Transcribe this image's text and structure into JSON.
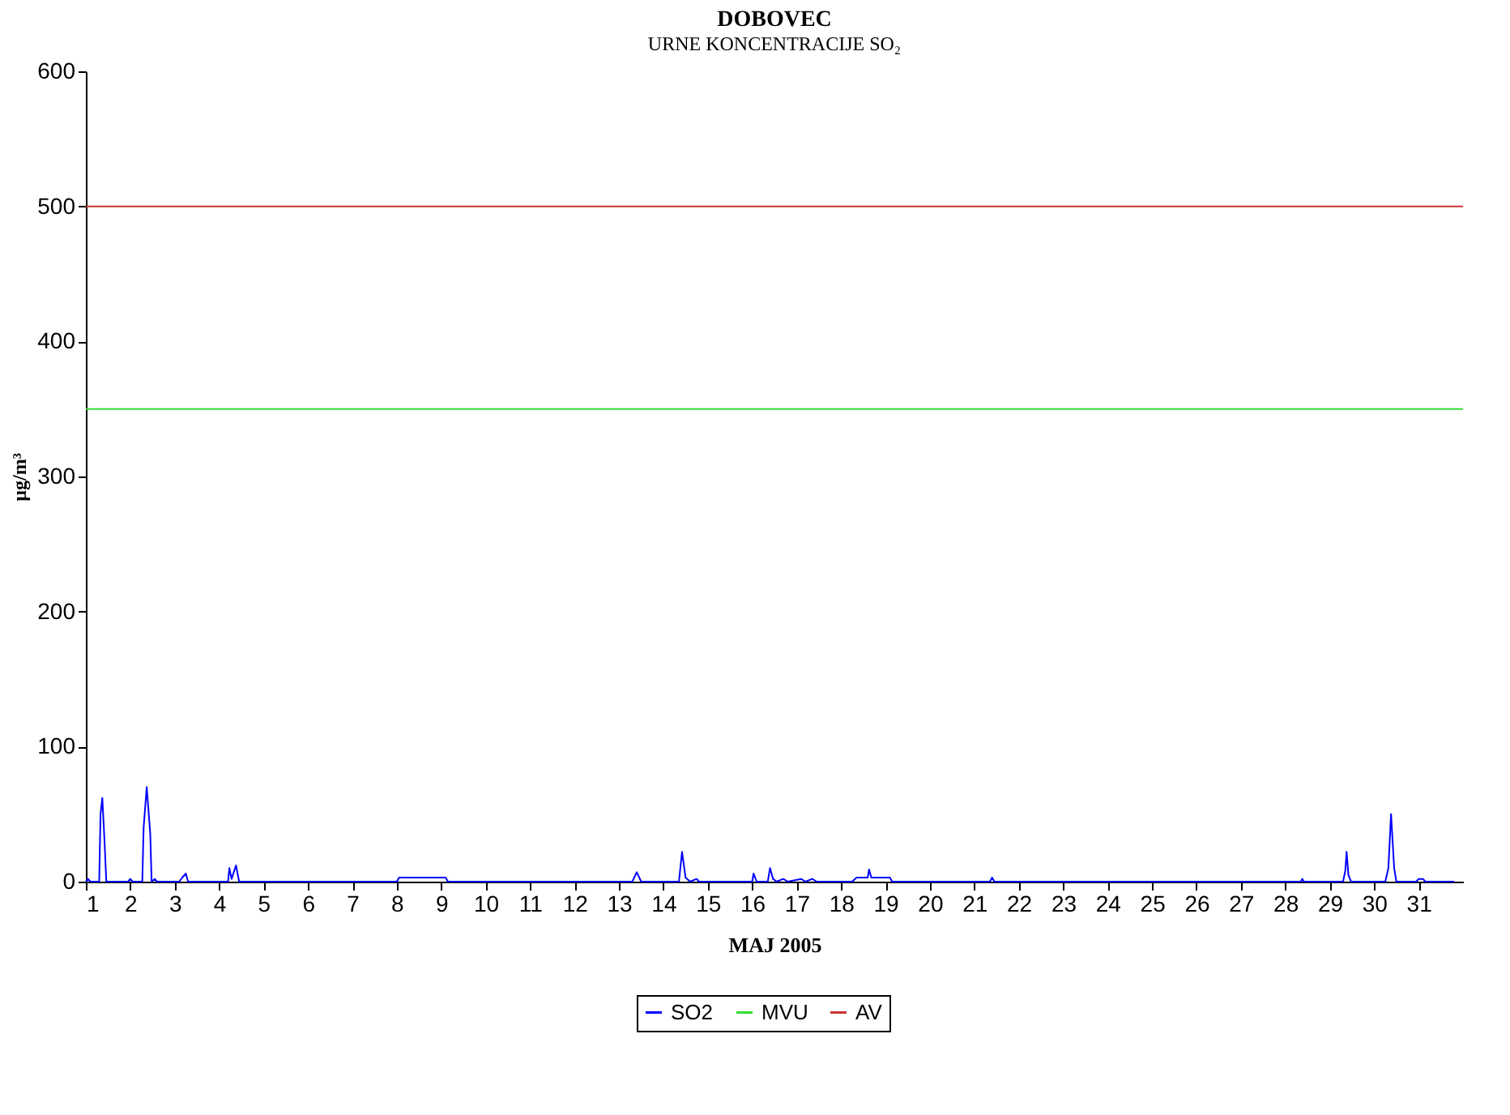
{
  "chart_data": {
    "type": "line",
    "title": "DOBOVEC",
    "subtitle": "URNE KONCENTRACIJE SO₂",
    "xlabel": "MAJ 2005",
    "ylabel": "µg/m³",
    "xlim": [
      1,
      32
    ],
    "xticks": [
      1,
      2,
      3,
      4,
      5,
      6,
      7,
      8,
      9,
      10,
      11,
      12,
      13,
      14,
      15,
      16,
      17,
      18,
      19,
      20,
      21,
      22,
      23,
      24,
      25,
      26,
      27,
      28,
      29,
      30,
      31
    ],
    "ylim": [
      0,
      600
    ],
    "yticks": [
      0,
      100,
      200,
      300,
      400,
      500,
      600
    ],
    "grid": false,
    "legend": "bottom",
    "line_style": "solid",
    "marker": "none",
    "series": [
      {
        "name": "SO2",
        "color": "#0000ff",
        "x": [
          1.0,
          1.05,
          1.1,
          1.3,
          1.33,
          1.37,
          1.42,
          1.46,
          1.95,
          2.0,
          2.05,
          2.27,
          2.3,
          2.37,
          2.45,
          2.48,
          2.55,
          2.6,
          3.1,
          3.17,
          3.25,
          3.3,
          4.2,
          4.23,
          4.28,
          4.38,
          4.45,
          8.0,
          8.05,
          9.1,
          9.15,
          13.3,
          13.4,
          13.5,
          14.35,
          14.42,
          14.5,
          14.6,
          14.75,
          14.8,
          16.0,
          16.03,
          16.1,
          16.35,
          16.4,
          16.47,
          16.55,
          16.7,
          16.8,
          17.1,
          17.2,
          17.35,
          17.45,
          18.25,
          18.35,
          18.6,
          18.63,
          18.68,
          19.1,
          19.15,
          21.35,
          21.4,
          21.45,
          28.35,
          28.38,
          28.42,
          29.3,
          29.35,
          29.38,
          29.42,
          29.48,
          30.25,
          30.32,
          30.38,
          30.45,
          30.5,
          30.95,
          31.0,
          31.1,
          31.15,
          31.8
        ],
        "values": [
          0,
          2,
          0,
          0,
          50,
          62,
          30,
          0,
          0,
          2,
          0,
          0,
          40,
          70,
          35,
          0,
          2,
          0,
          0,
          3,
          6,
          0,
          0,
          10,
          2,
          12,
          0,
          0,
          3,
          3,
          0,
          0,
          7,
          0,
          0,
          22,
          3,
          0,
          2,
          0,
          0,
          6,
          0,
          0,
          10,
          2,
          0,
          2,
          0,
          2,
          0,
          2,
          0,
          0,
          3,
          3,
          9,
          3,
          3,
          0,
          0,
          3,
          0,
          0,
          2,
          0,
          0,
          8,
          22,
          5,
          0,
          0,
          10,
          50,
          10,
          0,
          0,
          2,
          2,
          0,
          0
        ]
      },
      {
        "name": "MVU",
        "color": "#33dd33",
        "x": [
          1,
          32
        ],
        "values": [
          350,
          350
        ]
      },
      {
        "name": "AV",
        "color": "#cc3333",
        "x": [
          1,
          32
        ],
        "values": [
          500,
          500
        ]
      }
    ]
  }
}
